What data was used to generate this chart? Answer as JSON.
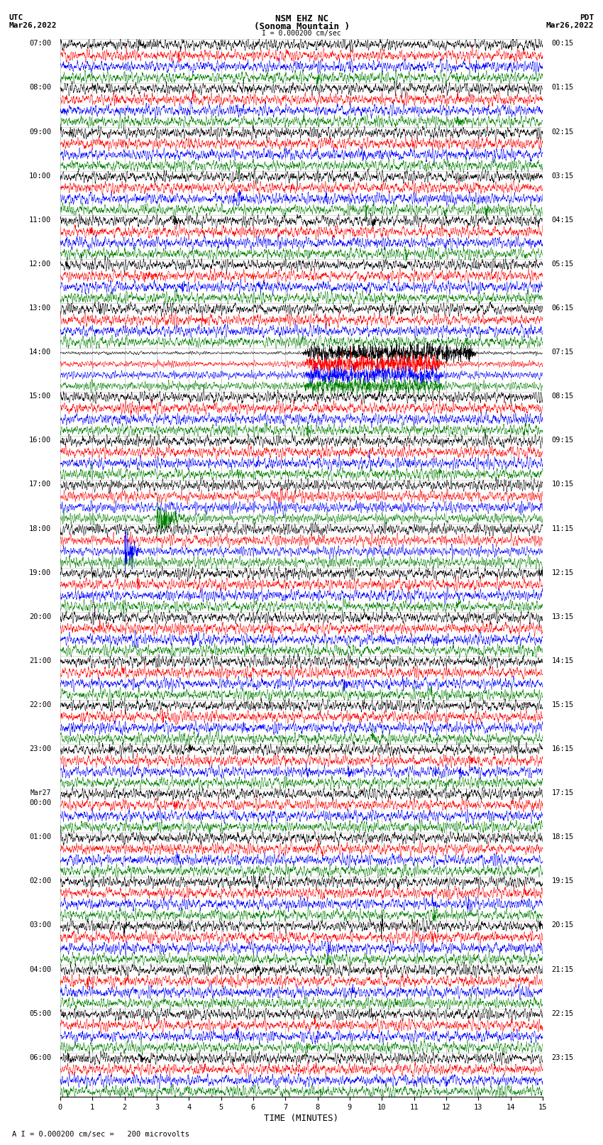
{
  "title_line1": "NSM EHZ NC",
  "title_line2": "(Sonoma Mountain )",
  "title_line3": "I = 0.000200 cm/sec",
  "utc_label": "UTC",
  "utc_date": "Mar26,2022",
  "pdt_label": "PDT",
  "pdt_date": "Mar26,2022",
  "xlabel": "TIME (MINUTES)",
  "footnote": "A I = 0.000200 cm/sec =   200 microvolts",
  "trace_color_cycle": [
    "black",
    "red",
    "blue",
    "green"
  ],
  "utc_times": [
    "07:00",
    "08:00",
    "09:00",
    "10:00",
    "11:00",
    "12:00",
    "13:00",
    "14:00",
    "15:00",
    "16:00",
    "17:00",
    "18:00",
    "19:00",
    "20:00",
    "21:00",
    "22:00",
    "23:00",
    "Mar27\n00:00",
    "01:00",
    "02:00",
    "03:00",
    "04:00",
    "05:00",
    "06:00"
  ],
  "pdt_times": [
    "00:15",
    "01:15",
    "02:15",
    "03:15",
    "04:15",
    "05:15",
    "06:15",
    "07:15",
    "08:15",
    "09:15",
    "10:15",
    "11:15",
    "12:15",
    "13:15",
    "14:15",
    "15:15",
    "16:15",
    "17:15",
    "18:15",
    "19:15",
    "20:15",
    "21:15",
    "22:15",
    "23:15"
  ],
  "n_rows": 24,
  "traces_per_row": 4,
  "n_minutes": 15,
  "bg_color": "white",
  "grid_color": "#888888",
  "font_size_title": 9,
  "font_size_label": 8,
  "font_size_tick": 7.5
}
